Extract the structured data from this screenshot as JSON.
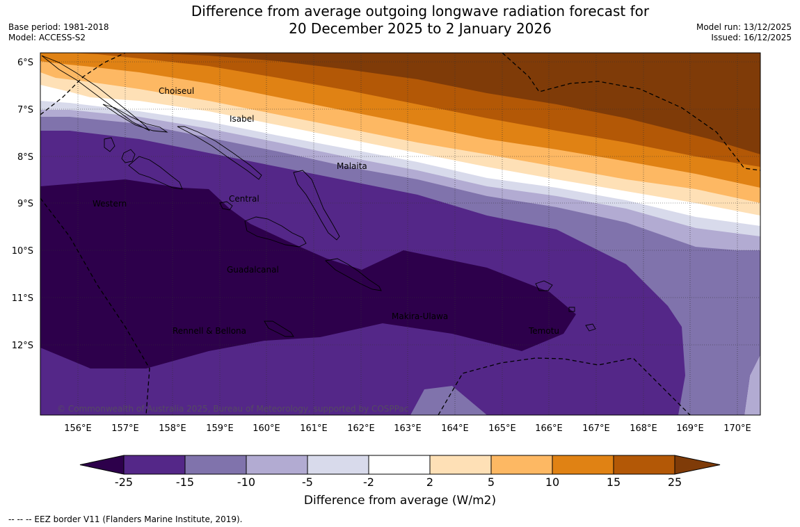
{
  "title": {
    "line1": "Difference from average outgoing longwave radiation forecast for",
    "line2": "20 December 2025 to 2 January 2026"
  },
  "meta_left": {
    "base_period": "Base period: 1981-2018",
    "model": "Model: ACCESS-S2"
  },
  "meta_right": {
    "model_run": "Model run: 13/12/2025",
    "issued": "Issued: 16/12/2025"
  },
  "map": {
    "lat_labels": [
      "6°S",
      "7°S",
      "8°S",
      "9°S",
      "10°S",
      "11°S",
      "12°S"
    ],
    "lon_labels": [
      "156°E",
      "157°E",
      "158°E",
      "159°E",
      "160°E",
      "161°E",
      "162°E",
      "163°E",
      "164°E",
      "165°E",
      "166°E",
      "167°E",
      "168°E",
      "169°E",
      "170°E"
    ],
    "province_labels": [
      "Choiseul",
      "Isabel",
      "Malaita",
      "Central",
      "Western",
      "Guadalcanal",
      "Makira-Ulawa",
      "Rennell & Bellona",
      "Temotu"
    ],
    "copyright": "© Commonwealth of Australia 2025, Bureau of Meteorology, supported by COSPPac"
  },
  "colorbar": {
    "ticks": [
      "-25",
      "-15",
      "-10",
      "-5",
      "-2",
      "2",
      "5",
      "10",
      "15",
      "25"
    ],
    "colors": {
      "below_min": "#2d004b",
      "bins": [
        "#542788",
        "#8073ac",
        "#b2abd2",
        "#d8daeb",
        "#ffffff",
        "#fee0b6",
        "#fdb863",
        "#e08214",
        "#b35806"
      ],
      "above_max": "#7f3b08"
    },
    "label": "Difference from average (W/m2)"
  },
  "footnote": "--  --  -- EEZ border V11 (Flanders Marine Institute, 2019)."
}
